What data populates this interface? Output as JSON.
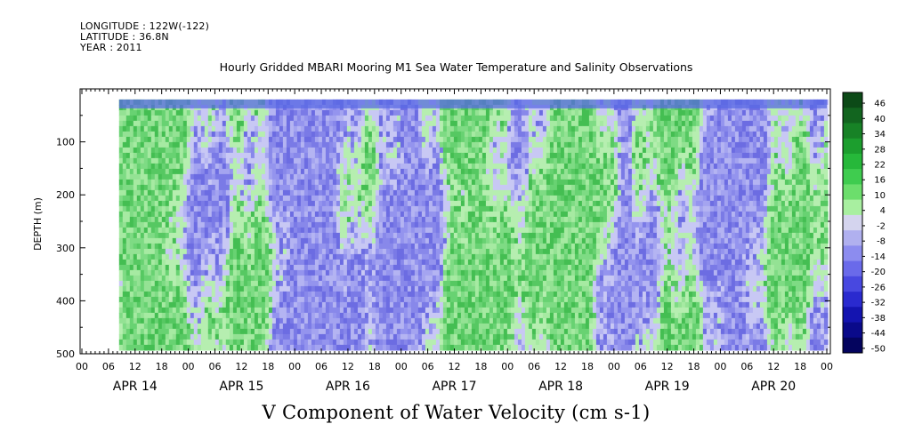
{
  "header": {
    "longitude": "LONGITUDE : 122W(-122)",
    "latitude": "LATITUDE : 36.8N",
    "year": "YEAR : 2011"
  },
  "plot_title": "Hourly Gridded MBARI Mooring M1 Sea Water Temperature and Salinity Observations",
  "variable_title": "V Component of Water Velocity (cm s-1)",
  "chart_data": {
    "type": "heatmap",
    "title": "Hourly Gridded MBARI Mooring M1 Sea Water Temperature and Salinity Observations",
    "variable": "V Component of Water Velocity (cm s-1)",
    "ylabel": "DEPTH (m)",
    "y_inverted": true,
    "ylim": [
      0,
      500
    ],
    "yticks": [
      100,
      200,
      300,
      400,
      500
    ],
    "ytick_labels": [
      "100",
      "200",
      "300",
      "400",
      "500"
    ],
    "hour_ticks": [
      "00",
      "06",
      "12",
      "18",
      "00",
      "06",
      "12",
      "18",
      "00",
      "06",
      "12",
      "18",
      "00",
      "06",
      "12",
      "18",
      "00",
      "06",
      "12",
      "18",
      "00",
      "06",
      "12",
      "18",
      "00",
      "06",
      "12",
      "18",
      "00"
    ],
    "dates": [
      "APR 14",
      "APR 15",
      "APR 16",
      "APR 17",
      "APR 18",
      "APR 19",
      "APR 20"
    ],
    "data_depth_range": [
      20,
      490
    ],
    "colorbar": {
      "levels": [
        46,
        40,
        34,
        28,
        22,
        16,
        10,
        4,
        -2,
        -8,
        -14,
        -20,
        -26,
        -32,
        -38,
        -44,
        -50
      ],
      "labels": [
        "46",
        "40",
        "34",
        "28",
        "22",
        "16",
        "10",
        "4",
        "-2",
        "-8",
        "-14",
        "-20",
        "-26",
        "-32",
        "-38",
        "-44",
        "-50"
      ],
      "colors": [
        "#0c4a17",
        "#12651f",
        "#178226",
        "#1c9e2e",
        "#26b83a",
        "#3fcc4f",
        "#6cde6c",
        "#a8efa0",
        "#d4d4ee",
        "#b0b0ef",
        "#8c8cef",
        "#6a6aea",
        "#4848e0",
        "#2a2acf",
        "#1414b0",
        "#0a0a8a",
        "#04045e"
      ]
    },
    "columns_by_day": [
      {
        "date": "APR 14",
        "pattern": [
          [
            "#9a9af0",
            "#8080ea",
            "#70d77a",
            "#a8a8f0",
            "#7fe086"
          ],
          [
            "#7878e6",
            "#a0e6a0",
            "#8a8aee",
            "#76d97d",
            "#9c9cef"
          ]
        ]
      },
      {
        "date": "APR 15",
        "pattern": [
          [
            "#8c8cee",
            "#80e08a",
            "#a4a4f0",
            "#6ad472",
            "#9090ec"
          ],
          [
            "#7b7be8",
            "#94e294",
            "#9898ee",
            "#82dc88",
            "#a8a8f2"
          ]
        ]
      },
      {
        "date": "APR 16",
        "pattern": [
          [
            "#7070e4",
            "#88de8c",
            "#56c862",
            "#9a9aee",
            "#74d67c"
          ],
          [
            "#8a8aec",
            "#a6a6f0",
            "#6cd474",
            "#7e7ee8",
            "#90e092"
          ]
        ]
      },
      {
        "date": "APR 17",
        "pattern": [
          [
            "#6464e0",
            "#7c7ce8",
            "#8cde8e",
            "#6868e2",
            "#58c866"
          ],
          [
            "#9494ee",
            "#7070e4",
            "#a0a0f0",
            "#7ed884",
            "#8686ea"
          ]
        ]
      },
      {
        "date": "APR 18",
        "pattern": [
          [
            "#9e9ef0",
            "#72d67a",
            "#8e8eec",
            "#5ccc68",
            "#a4a4f2"
          ],
          [
            "#7a7ae6",
            "#98e098",
            "#66d270",
            "#9090ec",
            "#84dc8a"
          ]
        ]
      },
      {
        "date": "APR 19",
        "pattern": [
          [
            "#a2a2f0",
            "#6ad070",
            "#4cc05a",
            "#96e096",
            "#8888ea"
          ],
          [
            "#5ece6a",
            "#a4e6a4",
            "#7474e6",
            "#54c85e",
            "#9a9aee"
          ]
        ]
      },
      {
        "date": "APR 20",
        "pattern": [
          [
            "#8e8eec",
            "#70d678",
            "#a8a8f2",
            "#58c864",
            "#9c9cee"
          ],
          [
            "#6c6ce2",
            "#46bc54",
            "#88dc8c",
            "#7e7ee8",
            "#9e9ef0"
          ]
        ]
      }
    ]
  },
  "colors": {
    "surface_band": "#5a6ae4",
    "background": "#ffffff",
    "axis": "#000000"
  }
}
